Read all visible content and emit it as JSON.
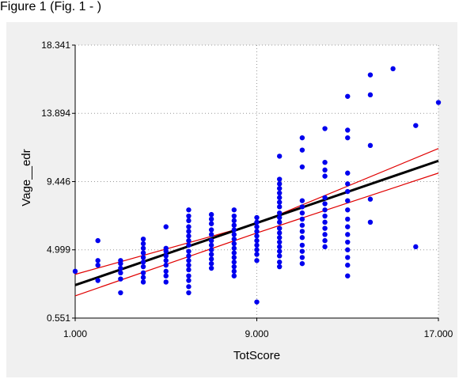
{
  "header": {
    "text": "Figure 1 (Fig. 1 - )"
  },
  "chart_data": {
    "type": "scatter",
    "title": "",
    "xlabel": "TotScore",
    "ylabel": "Vage__edr",
    "xlim": [
      1.0,
      17.0
    ],
    "ylim": [
      0.551,
      18.341
    ],
    "x_ticks": [
      "1.000",
      "9.000",
      "17.000"
    ],
    "y_ticks": [
      "0.551",
      "4.999",
      "9.446",
      "13.894",
      "18.341"
    ],
    "x_tick_values": [
      1.0,
      9.0,
      17.0
    ],
    "y_tick_values": [
      0.551,
      4.999,
      9.446,
      13.894,
      18.341
    ],
    "grid": true,
    "legend": "none",
    "colors": {
      "points": "#0000ee",
      "regression_line": "#000000",
      "confidence_band": "#e00000",
      "plot_background": "#ffffff",
      "panel_background": "#f0f0f0",
      "grid": "#999999"
    },
    "regression_line": {
      "x": [
        1.0,
        17.0
      ],
      "y": [
        2.7,
        10.8
      ]
    },
    "confidence_upper": {
      "x": [
        1.0,
        9.0,
        17.0
      ],
      "y": [
        3.4,
        6.7,
        11.6
      ]
    },
    "confidence_lower": {
      "x": [
        1.0,
        9.0,
        17.0
      ],
      "y": [
        2.0,
        6.1,
        10.0
      ]
    },
    "points": [
      [
        1.0,
        3.6
      ],
      [
        2.0,
        4.0
      ],
      [
        2.0,
        4.3
      ],
      [
        2.0,
        3.0
      ],
      [
        2.0,
        5.6
      ],
      [
        3.0,
        2.2
      ],
      [
        3.0,
        3.1
      ],
      [
        3.0,
        3.5
      ],
      [
        3.0,
        3.8
      ],
      [
        3.0,
        4.1
      ],
      [
        3.0,
        4.3
      ],
      [
        4.0,
        2.9
      ],
      [
        4.0,
        3.2
      ],
      [
        4.0,
        3.5
      ],
      [
        4.0,
        3.9
      ],
      [
        4.0,
        4.2
      ],
      [
        4.0,
        4.5
      ],
      [
        4.0,
        4.8
      ],
      [
        4.0,
        5.1
      ],
      [
        4.0,
        5.4
      ],
      [
        4.0,
        5.7
      ],
      [
        5.0,
        2.9
      ],
      [
        5.0,
        3.3
      ],
      [
        5.0,
        3.6
      ],
      [
        5.0,
        4.0
      ],
      [
        5.0,
        4.3
      ],
      [
        5.0,
        4.6
      ],
      [
        5.0,
        4.9
      ],
      [
        5.0,
        5.1
      ],
      [
        5.0,
        6.5
      ],
      [
        6.0,
        2.2
      ],
      [
        6.0,
        2.6
      ],
      [
        6.0,
        3.0
      ],
      [
        6.0,
        3.3
      ],
      [
        6.0,
        3.7
      ],
      [
        6.0,
        4.0
      ],
      [
        6.0,
        4.3
      ],
      [
        6.0,
        4.6
      ],
      [
        6.0,
        4.9
      ],
      [
        6.0,
        5.3
      ],
      [
        6.0,
        5.6
      ],
      [
        6.0,
        5.9
      ],
      [
        6.0,
        6.2
      ],
      [
        6.0,
        6.5
      ],
      [
        6.0,
        6.9
      ],
      [
        6.0,
        7.2
      ],
      [
        6.0,
        7.6
      ],
      [
        7.0,
        3.8
      ],
      [
        7.0,
        4.1
      ],
      [
        7.0,
        4.4
      ],
      [
        7.0,
        4.7
      ],
      [
        7.0,
        5.0
      ],
      [
        7.0,
        5.3
      ],
      [
        7.0,
        5.6
      ],
      [
        7.0,
        6.0
      ],
      [
        7.0,
        6.3
      ],
      [
        7.0,
        6.7
      ],
      [
        7.0,
        7.0
      ],
      [
        7.0,
        7.3
      ],
      [
        8.0,
        3.3
      ],
      [
        8.0,
        3.6
      ],
      [
        8.0,
        3.9
      ],
      [
        8.0,
        4.2
      ],
      [
        8.0,
        4.5
      ],
      [
        8.0,
        4.8
      ],
      [
        8.0,
        5.1
      ],
      [
        8.0,
        5.4
      ],
      [
        8.0,
        5.7
      ],
      [
        8.0,
        6.0
      ],
      [
        8.0,
        6.3
      ],
      [
        8.0,
        6.6
      ],
      [
        8.0,
        6.9
      ],
      [
        8.0,
        7.2
      ],
      [
        8.0,
        7.6
      ],
      [
        9.0,
        1.6
      ],
      [
        9.0,
        4.3
      ],
      [
        9.0,
        4.7
      ],
      [
        9.0,
        5.0
      ],
      [
        9.0,
        5.3
      ],
      [
        9.0,
        5.6
      ],
      [
        9.0,
        5.9
      ],
      [
        9.0,
        6.2
      ],
      [
        9.0,
        6.5
      ],
      [
        9.0,
        6.8
      ],
      [
        9.0,
        7.1
      ],
      [
        10.0,
        3.9
      ],
      [
        10.0,
        4.2
      ],
      [
        10.0,
        4.6
      ],
      [
        10.0,
        4.9
      ],
      [
        10.0,
        5.2
      ],
      [
        10.0,
        5.5
      ],
      [
        10.0,
        5.8
      ],
      [
        10.0,
        6.1
      ],
      [
        10.0,
        6.4
      ],
      [
        10.0,
        6.8
      ],
      [
        10.0,
        7.1
      ],
      [
        10.0,
        7.4
      ],
      [
        10.0,
        7.8
      ],
      [
        10.0,
        8.1
      ],
      [
        10.0,
        8.4
      ],
      [
        10.0,
        8.7
      ],
      [
        10.0,
        9.0
      ],
      [
        10.0,
        9.3
      ],
      [
        10.0,
        9.6
      ],
      [
        10.0,
        11.1
      ],
      [
        11.0,
        4.1
      ],
      [
        11.0,
        4.5
      ],
      [
        11.0,
        4.9
      ],
      [
        11.0,
        5.3
      ],
      [
        11.0,
        5.8
      ],
      [
        11.0,
        6.2
      ],
      [
        11.0,
        6.6
      ],
      [
        11.0,
        7.0
      ],
      [
        11.0,
        7.4
      ],
      [
        11.0,
        7.8
      ],
      [
        11.0,
        8.2
      ],
      [
        11.0,
        10.4
      ],
      [
        11.0,
        11.5
      ],
      [
        11.0,
        12.3
      ],
      [
        12.0,
        5.2
      ],
      [
        12.0,
        5.6
      ],
      [
        12.0,
        6.0
      ],
      [
        12.0,
        6.4
      ],
      [
        12.0,
        6.8
      ],
      [
        12.0,
        7.2
      ],
      [
        12.0,
        7.6
      ],
      [
        12.0,
        8.0
      ],
      [
        12.0,
        8.4
      ],
      [
        12.0,
        9.8
      ],
      [
        12.0,
        10.2
      ],
      [
        12.0,
        10.7
      ],
      [
        12.0,
        12.9
      ],
      [
        13.0,
        3.3
      ],
      [
        13.0,
        4.0
      ],
      [
        13.0,
        4.5
      ],
      [
        13.0,
        5.0
      ],
      [
        13.0,
        5.5
      ],
      [
        13.0,
        6.0
      ],
      [
        13.0,
        6.5
      ],
      [
        13.0,
        7.0
      ],
      [
        13.0,
        7.6
      ],
      [
        13.0,
        8.2
      ],
      [
        13.0,
        8.8
      ],
      [
        13.0,
        9.3
      ],
      [
        13.0,
        10.0
      ],
      [
        13.0,
        12.3
      ],
      [
        13.0,
        12.8
      ],
      [
        13.0,
        15.0
      ],
      [
        14.0,
        6.8
      ],
      [
        14.0,
        8.3
      ],
      [
        14.0,
        11.8
      ],
      [
        14.0,
        15.1
      ],
      [
        14.0,
        16.4
      ],
      [
        15.0,
        16.8
      ],
      [
        16.0,
        5.2
      ],
      [
        16.0,
        13.1
      ],
      [
        17.0,
        14.6
      ]
    ]
  }
}
